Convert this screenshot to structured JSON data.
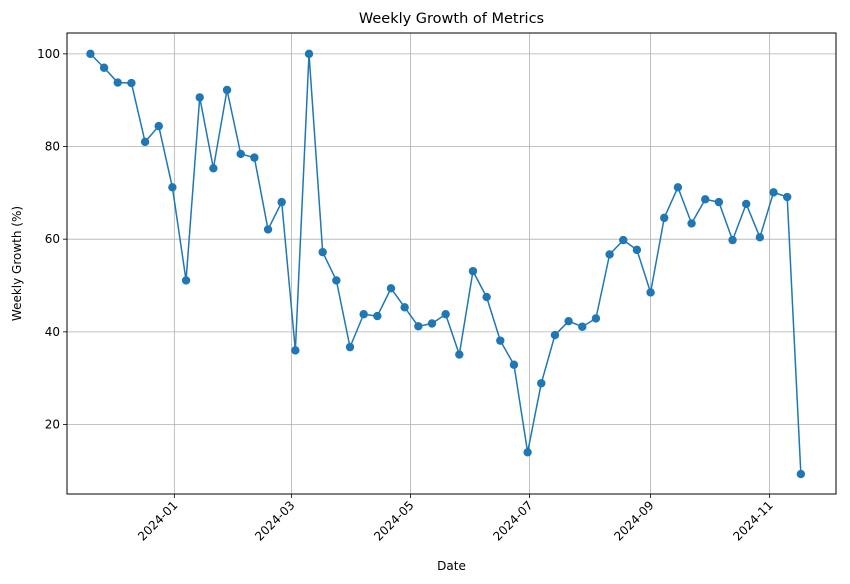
{
  "chart_data": {
    "type": "line",
    "title": "Weekly Growth of Metrics",
    "xlabel": "Date",
    "ylabel": "Weekly Growth (%)",
    "x_is_date": true,
    "xlim": [
      "2023-11-07",
      "2024-12-05"
    ],
    "ylim": [
      5,
      104.5
    ],
    "xticks": [
      "2024-01-01",
      "2024-03-01",
      "2024-05-01",
      "2024-07-01",
      "2024-09-01",
      "2024-11-01"
    ],
    "xtick_labels": [
      "2024-01",
      "2024-03",
      "2024-05",
      "2024-07",
      "2024-09",
      "2024-11"
    ],
    "yticks": [
      20,
      40,
      60,
      80,
      100
    ],
    "ytick_labels": [
      "20",
      "40",
      "60",
      "80",
      "100"
    ],
    "grid": true,
    "line_color": "#1f77b4",
    "marker": "circle",
    "series": [
      {
        "x": [
          "2023-11-19",
          "2023-11-26",
          "2023-12-03",
          "2023-12-10",
          "2023-12-17",
          "2023-12-24",
          "2023-12-31",
          "2024-01-07",
          "2024-01-14",
          "2024-01-21",
          "2024-01-28",
          "2024-02-04",
          "2024-02-11",
          "2024-02-18",
          "2024-02-25",
          "2024-03-03",
          "2024-03-10",
          "2024-03-17",
          "2024-03-24",
          "2024-03-31",
          "2024-04-07",
          "2024-04-14",
          "2024-04-21",
          "2024-04-28",
          "2024-05-05",
          "2024-05-12",
          "2024-05-19",
          "2024-05-26",
          "2024-06-02",
          "2024-06-09",
          "2024-06-16",
          "2024-06-23",
          "2024-06-30",
          "2024-07-07",
          "2024-07-14",
          "2024-07-21",
          "2024-07-28",
          "2024-08-04",
          "2024-08-11",
          "2024-08-18",
          "2024-08-25",
          "2024-09-01",
          "2024-09-08",
          "2024-09-15",
          "2024-09-22",
          "2024-09-29",
          "2024-10-06",
          "2024-10-13",
          "2024-10-20",
          "2024-10-27",
          "2024-11-03",
          "2024-11-10",
          "2024-11-17"
        ],
        "values": [
          100,
          97,
          93.8,
          93.7,
          81,
          84.4,
          71.2,
          51.1,
          90.6,
          75.3,
          92.2,
          78.4,
          77.6,
          62.1,
          68,
          36,
          100,
          57.2,
          51.1,
          36.7,
          43.8,
          43.4,
          49.4,
          45.3,
          41.2,
          41.8,
          43.8,
          35.1,
          53.1,
          47.5,
          38.1,
          32.9,
          14,
          28.9,
          39.3,
          42.3,
          41.1,
          42.9,
          56.7,
          59.8,
          57.7,
          48.5,
          64.6,
          71.2,
          63.4,
          68.6,
          68,
          59.8,
          67.6,
          60.4,
          70.1,
          69.1,
          9.3
        ]
      }
    ]
  }
}
